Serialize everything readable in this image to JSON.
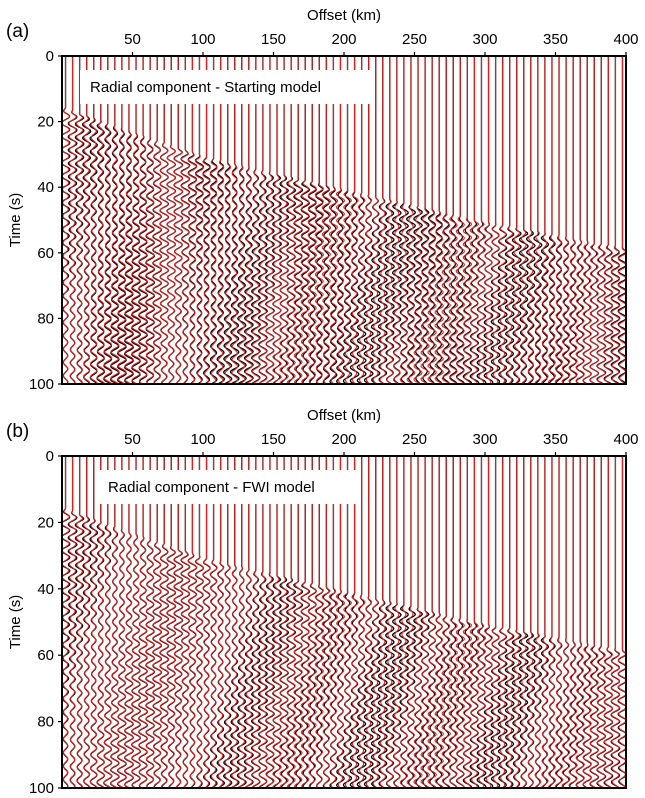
{
  "chart_data": [
    {
      "type": "line",
      "panel_label": "(a)",
      "annotation": "Radial component - Starting model",
      "xlabel": "Offset (km)",
      "ylabel": "Time (s)",
      "xlim": [
        0,
        400
      ],
      "ylim": [
        100,
        0
      ],
      "x_ticks": [
        50,
        100,
        150,
        200,
        250,
        300,
        350,
        400
      ],
      "y_ticks": [
        0,
        20,
        40,
        60,
        80,
        100
      ],
      "x_axis_position": "top",
      "y_axis_inverted": true,
      "trace_count": 80,
      "series": [
        {
          "role": "observed",
          "color": "#000000"
        },
        {
          "role": "synthetic",
          "color": "#e02020"
        }
      ],
      "first_arrival_time": {
        "x": [
          0,
          100,
          200,
          300,
          400
        ],
        "y": [
          17,
          32,
          42,
          52,
          60
        ]
      }
    },
    {
      "type": "line",
      "panel_label": "(b)",
      "annotation": "Radial component - FWI model",
      "xlabel": "Offset (km)",
      "ylabel": "Time (s)",
      "xlim": [
        0,
        400
      ],
      "ylim": [
        100,
        0
      ],
      "x_ticks": [
        50,
        100,
        150,
        200,
        250,
        300,
        350,
        400
      ],
      "y_ticks": [
        0,
        20,
        40,
        60,
        80,
        100
      ],
      "x_axis_position": "top",
      "y_axis_inverted": true,
      "trace_count": 80,
      "series": [
        {
          "role": "observed",
          "color": "#000000"
        },
        {
          "role": "synthetic",
          "color": "#e02020"
        }
      ],
      "first_arrival_time": {
        "x": [
          0,
          100,
          200,
          300,
          400
        ],
        "y": [
          17,
          32,
          42,
          52,
          60
        ]
      }
    }
  ]
}
